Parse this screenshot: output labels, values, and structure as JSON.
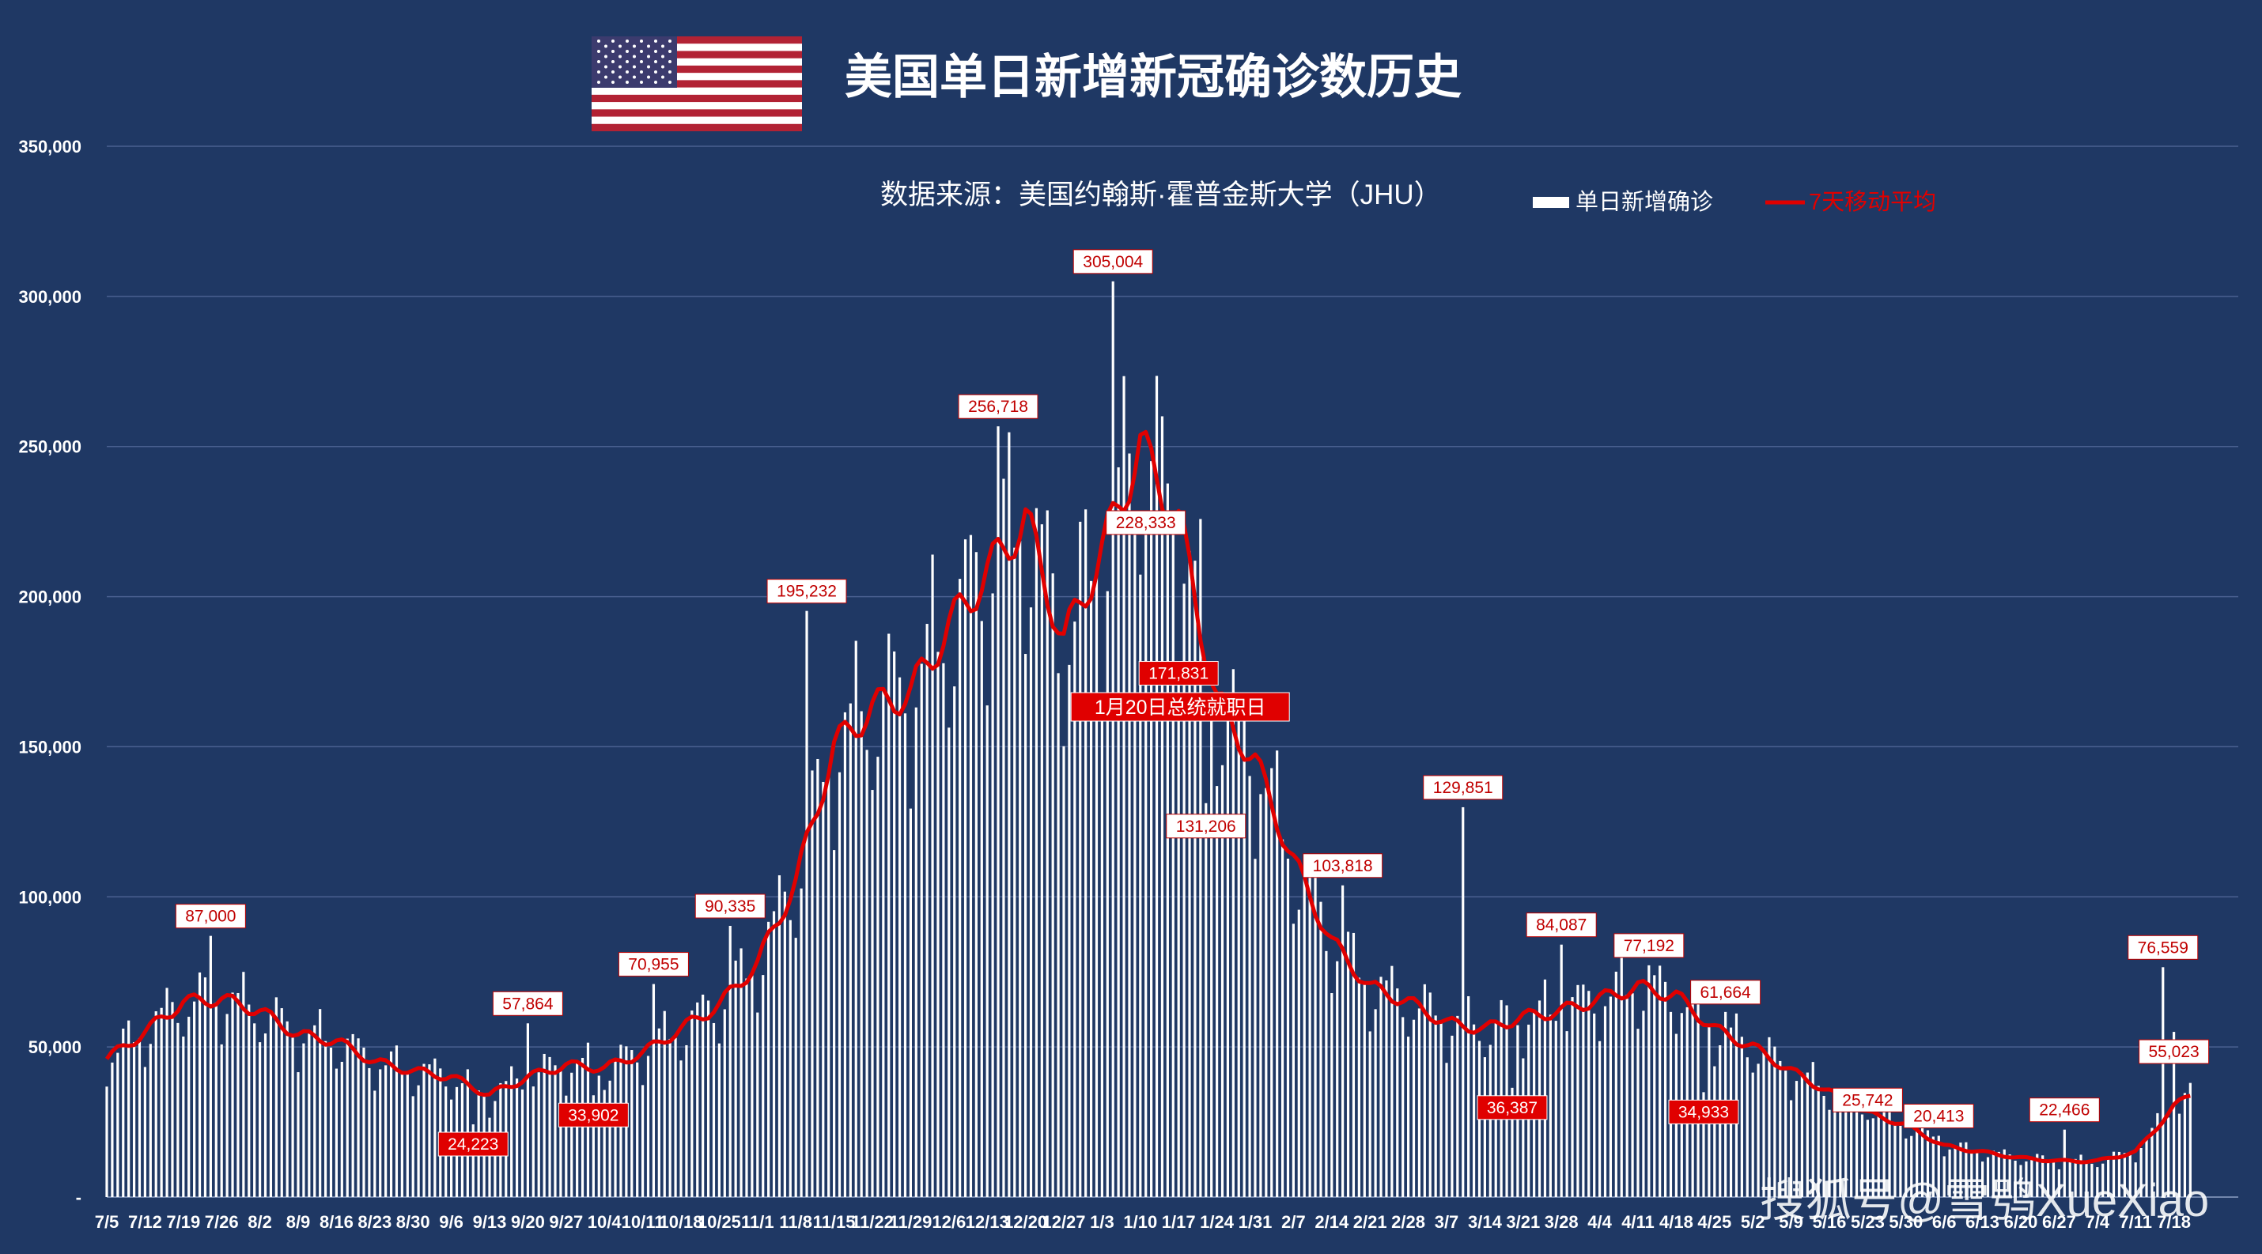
{
  "colors": {
    "background": "#1f3864",
    "bar": "#ffffff",
    "line": "#e00000",
    "grid": "#4a6090",
    "callout_border": "#c00000"
  },
  "icons": {
    "flag": "us-flag-icon"
  },
  "chart_data": {
    "type": "bar+line",
    "title": "美国单日新增新冠确诊数历史",
    "subtitle": "数据来源：美国约翰斯·霍普金斯大学（JHU）",
    "watermark": "搜狐号@雪鸮XueXiao",
    "legend_position": "top-right",
    "series": [
      {
        "name": "单日新增确诊",
        "type": "bar"
      },
      {
        "name": "7天移动平均",
        "type": "line"
      }
    ],
    "ylim": [
      0,
      350000
    ],
    "y_ticks": [
      {
        "value": 0,
        "label": "-"
      },
      {
        "value": 50000,
        "label": "50,000"
      },
      {
        "value": 100000,
        "label": "100,000"
      },
      {
        "value": 150000,
        "label": "150,000"
      },
      {
        "value": 200000,
        "label": "200,000"
      },
      {
        "value": 250000,
        "label": "250,000"
      },
      {
        "value": 300000,
        "label": "300,000"
      },
      {
        "value": 350000,
        "label": "350,000"
      }
    ],
    "x_ticks": [
      "7/5",
      "7/12",
      "7/19",
      "7/26",
      "8/2",
      "8/9",
      "8/16",
      "8/23",
      "8/30",
      "9/6",
      "9/13",
      "9/20",
      "9/27",
      "10/4",
      "10/11",
      "10/18",
      "10/25",
      "11/1",
      "11/8",
      "11/15",
      "11/22",
      "11/29",
      "12/6",
      "12/13",
      "12/20",
      "12/27",
      "1/3",
      "1/10",
      "1/17",
      "1/24",
      "1/31",
      "2/7",
      "2/14",
      "2/21",
      "2/28",
      "3/7",
      "3/14",
      "3/21",
      "3/28",
      "4/4",
      "4/11",
      "4/18",
      "4/25",
      "5/2",
      "5/9",
      "5/16",
      "5/23",
      "5/30",
      "6/6",
      "6/13",
      "6/20",
      "6/27",
      "7/4",
      "7/11",
      "7/18"
    ],
    "weekly_average": [
      46000,
      55000,
      65000,
      66000,
      62000,
      54000,
      52000,
      45000,
      42000,
      40000,
      34000,
      40000,
      44000,
      43000,
      48000,
      56000,
      64000,
      78000,
      105000,
      150000,
      163000,
      168000,
      190000,
      208000,
      226000,
      185000,
      215000,
      250000,
      225000,
      165000,
      145000,
      112000,
      85000,
      70000,
      65000,
      58000,
      56000,
      60000,
      62000,
      66000,
      70000,
      67000,
      56000,
      50000,
      42000,
      35000,
      28000,
      24000,
      17000,
      15000,
      13000,
      12000,
      12000,
      15000,
      30000,
      40000
    ],
    "annotations": [
      {
        "label": "87,000",
        "date": "7/24",
        "value": 87000,
        "style": "white"
      },
      {
        "label": "24,223",
        "date": "9/13",
        "value": 24223,
        "style": "red"
      },
      {
        "label": "57,864",
        "date": "9/23",
        "value": 57864,
        "style": "white"
      },
      {
        "label": "33,902",
        "date": "10/5",
        "value": 33902,
        "style": "red"
      },
      {
        "label": "70,955",
        "date": "10/16",
        "value": 70955,
        "style": "white"
      },
      {
        "label": "90,335",
        "date": "10/30",
        "value": 90335,
        "style": "white"
      },
      {
        "label": "195,232",
        "date": "11/13",
        "value": 195232,
        "style": "white"
      },
      {
        "label": "256,718",
        "date": "12/18",
        "value": 256718,
        "style": "white"
      },
      {
        "label": "305,004",
        "date": "1/8",
        "value": 305004,
        "style": "white"
      },
      {
        "label": "228,333",
        "date": "1/14",
        "value": 228333,
        "style": "white"
      },
      {
        "label": "171,831",
        "date": "1/20",
        "value": 171831,
        "style": "red"
      },
      {
        "label": "131,206",
        "date": "1/25",
        "value": 131206,
        "style": "white"
      },
      {
        "label": "103,818",
        "date": "2/19",
        "value": 103818,
        "style": "white"
      },
      {
        "label": "129,851",
        "date": "3/13",
        "value": 129851,
        "style": "white"
      },
      {
        "label": "36,387",
        "date": "3/22",
        "value": 36387,
        "style": "red"
      },
      {
        "label": "84,087",
        "date": "3/31",
        "value": 84087,
        "style": "white"
      },
      {
        "label": "77,192",
        "date": "4/16",
        "value": 77192,
        "style": "white"
      },
      {
        "label": "34,933",
        "date": "4/26",
        "value": 34933,
        "style": "red"
      },
      {
        "label": "61,664",
        "date": "4/30",
        "value": 61664,
        "style": "white"
      },
      {
        "label": "25,742",
        "date": "5/26",
        "value": 25742,
        "style": "white"
      },
      {
        "label": "20,413",
        "date": "6/8",
        "value": 20413,
        "style": "white"
      },
      {
        "label": "22,466",
        "date": "7/1",
        "value": 22466,
        "style": "white"
      },
      {
        "label": "76,559",
        "date": "7/19",
        "value": 76559,
        "style": "white"
      },
      {
        "label": "55,023",
        "date": "7/21",
        "value": 55023,
        "style": "white"
      }
    ],
    "event": {
      "label": "1月20日总统就职日",
      "date": "1/20"
    }
  }
}
